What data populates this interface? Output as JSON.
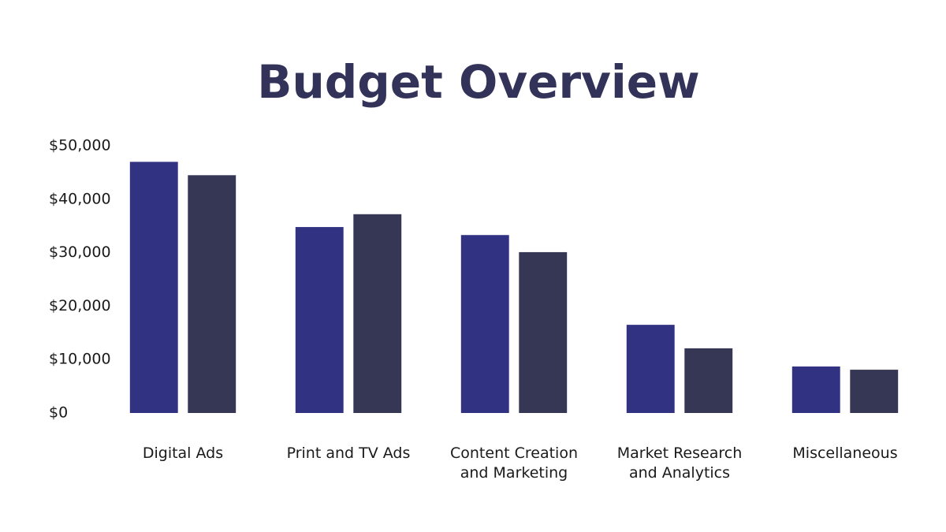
{
  "chart_data": {
    "type": "bar",
    "title": "Budget Overview",
    "categories": [
      "Digital Ads",
      "Print and TV Ads",
      "Content Creation and Marketing",
      "Market Research and Analytics",
      "Miscellaneous"
    ],
    "series": [
      {
        "color": "#323282",
        "values": [
          47000,
          34800,
          33300,
          16500,
          8700
        ]
      },
      {
        "color": "#363655",
        "values": [
          44500,
          37200,
          30100,
          12100,
          8100
        ]
      }
    ],
    "ylim": [
      0,
      50000
    ],
    "yticks": [
      {
        "value": 0,
        "label": "$0"
      },
      {
        "value": 10000,
        "label": "$10,000"
      },
      {
        "value": 20000,
        "label": "$20,000"
      },
      {
        "value": 30000,
        "label": "$30,000"
      },
      {
        "value": 40000,
        "label": "$40,000"
      },
      {
        "value": 50000,
        "label": "$50,000"
      }
    ],
    "grid": false
  }
}
